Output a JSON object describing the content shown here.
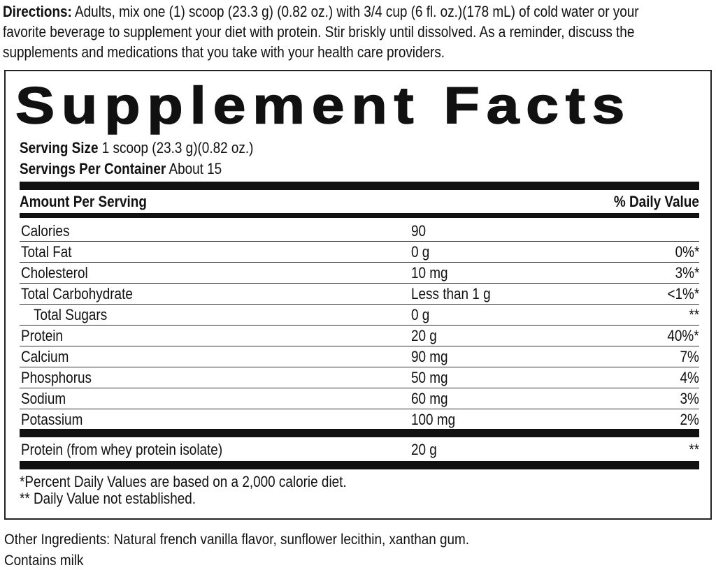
{
  "directions": {
    "label": "Directions:",
    "line1": " Adults, mix one (1) scoop (23.3 g) (0.82 oz.) with 3/4 cup (6 fl. oz.)(178 mL)  of cold water or your",
    "line2": "favorite beverage to supplement your diet with protein. Stir briskly until dissolved. As a reminder, discuss the",
    "line3": "supplements and medications that you take with your health care providers."
  },
  "panel": {
    "title": "Supplement Facts",
    "serving_size_label": "Serving Size",
    "serving_size": " 1 scoop (23.3 g)(0.82 oz.)",
    "servings_label": "Servings Per Container",
    "servings": " About 15",
    "amount_header": "Amount Per Serving",
    "dv_header": "% Daily Value",
    "rows": [
      {
        "name": "Calories",
        "amount": "90",
        "dv": ""
      },
      {
        "name": "Total Fat",
        "amount": "0 g",
        "dv": "0%*"
      },
      {
        "name": "Cholesterol",
        "amount": "10 mg",
        "dv": "3%*"
      },
      {
        "name": "Total Carbohydrate",
        "amount": "Less than 1 g",
        "dv": "<1%*"
      },
      {
        "name": "Total Sugars",
        "amount": "0 g",
        "dv": "**"
      },
      {
        "name": "Protein",
        "amount": "20 g",
        "dv": "40%*"
      },
      {
        "name": "Calcium",
        "amount": "90 mg",
        "dv": "7%"
      },
      {
        "name": "Phosphorus",
        "amount": "50 mg",
        "dv": "4%"
      },
      {
        "name": "Sodium",
        "amount": "60 mg",
        "dv": "3%"
      },
      {
        "name": "Potassium",
        "amount": "100 mg",
        "dv": "2%"
      }
    ],
    "extra_row": {
      "name": "Protein (from whey protein isolate)",
      "amount": "20 g",
      "dv": "**"
    },
    "footnote1": "*Percent Daily Values are based on a 2,000 calorie diet.",
    "footnote2": "** Daily Value not established."
  },
  "other_ingredients": "Other Ingredients:  Natural french vanilla flavor, sunflower lecithin, xanthan gum.",
  "allergen": "Contains milk"
}
